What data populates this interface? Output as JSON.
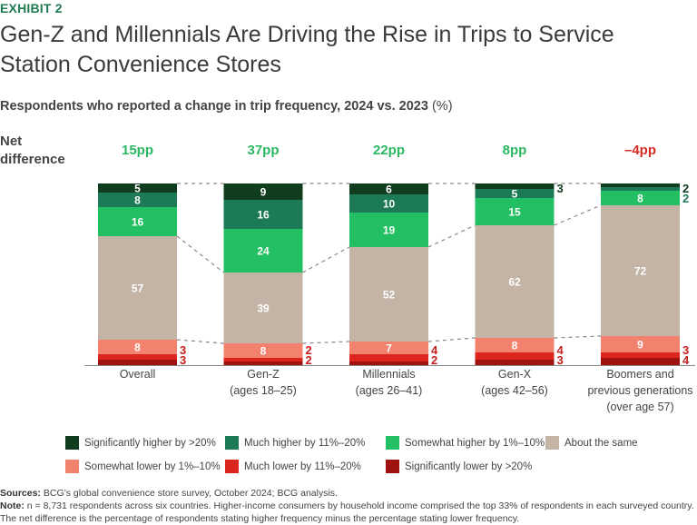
{
  "header": {
    "exhibit": "EXHIBIT 2",
    "title": "Gen-Z and Millennials Are Driving the Rise in Trips to Service Station Convenience Stores",
    "subtitle": "Respondents who reported a change in trip frequency, 2024 vs. 2023",
    "subtitle_unit": "(%)",
    "net_difference_label_line1": "Net",
    "net_difference_label_line2": "difference"
  },
  "colors": {
    "sig_higher": "#113d1f",
    "much_higher": "#1d7a56",
    "somewhat_higher": "#22c062",
    "same": "#c3b4a6",
    "somewhat_lower": "#f2826d",
    "much_lower": "#dc251c",
    "sig_lower": "#a01210",
    "net_positive": "#2bb862",
    "net_negative": "#d52b22",
    "outside_label_red": "#c4201c"
  },
  "chart_data": {
    "type": "bar",
    "stacked": true,
    "title": "Respondents who reported a change in trip frequency, 2024 vs. 2023 (%)",
    "xlabel": "",
    "ylabel": "",
    "ylim": [
      0,
      100
    ],
    "categories": [
      [
        "Overall"
      ],
      [
        "Gen-Z",
        "(ages 18–25)"
      ],
      [
        "Millennials",
        "(ages 26–41)"
      ],
      [
        "Gen-X",
        "(ages 42–56)"
      ],
      [
        "Boomers and",
        "previous generations",
        "(over age 57)"
      ]
    ],
    "net_difference": [
      "15pp",
      "37pp",
      "22pp",
      "8pp",
      "–4pp"
    ],
    "net_difference_values": [
      15,
      37,
      22,
      8,
      -4
    ],
    "series": [
      {
        "key": "sig_higher",
        "name": "Significantly higher by >20%",
        "values": [
          5,
          9,
          6,
          3,
          2
        ]
      },
      {
        "key": "much_higher",
        "name": "Much higher by 11%–20%",
        "values": [
          8,
          16,
          10,
          5,
          2
        ]
      },
      {
        "key": "somewhat_higher",
        "name": "Somewhat higher by 1%–10%",
        "values": [
          16,
          24,
          19,
          15,
          8
        ]
      },
      {
        "key": "same",
        "name": "About the same",
        "values": [
          57,
          39,
          52,
          62,
          72
        ]
      },
      {
        "key": "somewhat_lower",
        "name": "Somewhat lower by 1%–10%",
        "values": [
          8,
          8,
          7,
          8,
          9
        ]
      },
      {
        "key": "much_lower",
        "name": "Much lower by 11%–20%",
        "values": [
          3,
          2,
          4,
          4,
          3
        ]
      },
      {
        "key": "sig_lower",
        "name": "Significantly lower by >20%",
        "values": [
          3,
          2,
          2,
          3,
          4
        ]
      }
    ],
    "legend_position": "bottom",
    "grid": false
  },
  "legend": [
    {
      "key": "sig_higher",
      "label": "Significantly higher by >20%"
    },
    {
      "key": "much_higher",
      "label": "Much higher by 11%–20%"
    },
    {
      "key": "somewhat_higher",
      "label": "Somewhat higher by 1%–10%"
    },
    {
      "key": "same",
      "label": "About the same"
    },
    {
      "key": "somewhat_lower",
      "label": "Somewhat lower by 1%–10%"
    },
    {
      "key": "much_lower",
      "label": "Much lower by 11%–20%"
    },
    {
      "key": "sig_lower",
      "label": "Significantly lower by >20%"
    }
  ],
  "footer": {
    "sources_label": "Sources:",
    "sources_text": " BCG’s global convenience store survey, October 2024; BCG analysis.",
    "note_label": "Note:",
    "note_text": " n = 8,731 respondents across six countries. Higher-income consumers by household income comprised the top 33% of respondents in each surveyed country. The net difference is the percentage of respondents stating higher frequency minus the percentage stating lower frequency."
  }
}
